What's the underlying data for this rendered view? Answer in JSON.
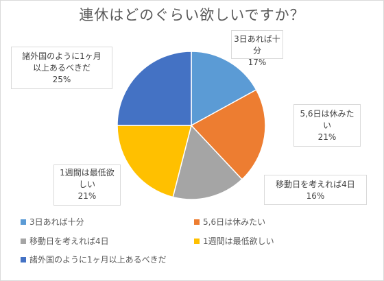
{
  "chart_data": {
    "type": "pie",
    "title": "連休はどのぐらい欲しいですか？",
    "categories": [
      "3日あれば十分",
      "5,6日は休みたい",
      "移動日を考えれば4日",
      "1週間は最低欲しい",
      "諸外国のように1ヶ月以上あるべきだ"
    ],
    "values": [
      17,
      21,
      16,
      21,
      25
    ],
    "colors": [
      "#5b9bd5",
      "#ed7d31",
      "#a5a5a5",
      "#ffc000",
      "#4472c4"
    ],
    "data_labels": [
      {
        "name_lines": [
          "3日あれば十分"
        ],
        "pct": "17%"
      },
      {
        "name_lines": [
          "5,6日は休みた",
          "い"
        ],
        "pct": "21%"
      },
      {
        "name_lines": [
          "移動日を考えれば4日"
        ],
        "pct": "16%"
      },
      {
        "name_lines": [
          "1週間は最低欲",
          "しい"
        ],
        "pct": "21%"
      },
      {
        "name_lines": [
          "諸外国のように1ヶ月",
          "以上あるべきだ"
        ],
        "pct": "25%"
      }
    ],
    "legend": "bottom"
  }
}
